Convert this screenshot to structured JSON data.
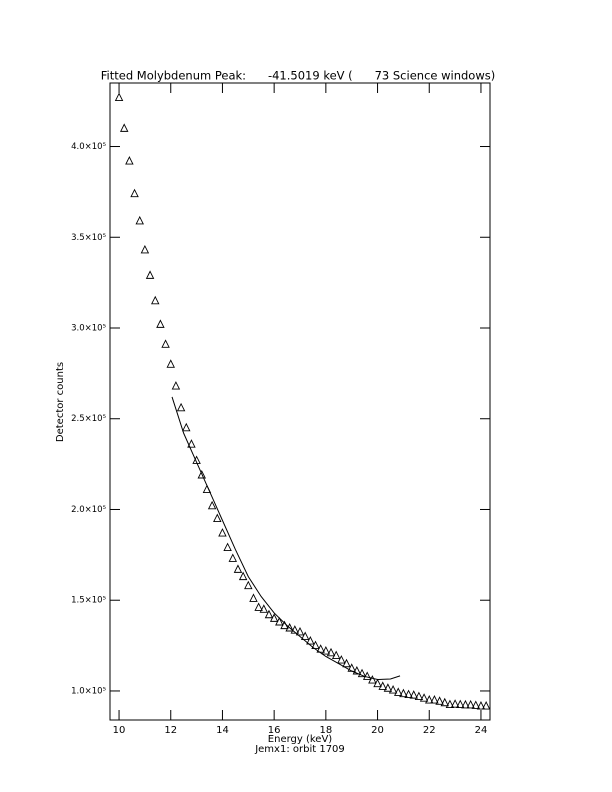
{
  "chart_data": {
    "type": "scatter",
    "title": "Fitted Molybdenum Peak:      -41.5019 keV (      73 Science windows)",
    "x_label": "Energy (keV)",
    "subtitle": "Jemx1: orbit 1709",
    "y_label": "Detector counts",
    "xlim": [
      9.65,
      24.35
    ],
    "ylim": [
      84000,
      435000
    ],
    "xticks": [
      10,
      12,
      14,
      16,
      18,
      20,
      22,
      24
    ],
    "yticks": [
      {
        "value": 100000,
        "label": "1.0×10⁵"
      },
      {
        "value": 150000,
        "label": "1.5×10⁵"
      },
      {
        "value": 200000,
        "label": "2.0×10⁵"
      },
      {
        "value": 250000,
        "label": "2.5×10⁵"
      },
      {
        "value": 300000,
        "label": "3.0×10⁵"
      },
      {
        "value": 350000,
        "label": "3.5×10⁵"
      },
      {
        "value": 400000,
        "label": "4.0×10⁵"
      }
    ],
    "color": "#000000",
    "series": [
      {
        "marker": "triangle",
        "x": [
          10.0,
          10.2,
          10.4,
          10.6,
          10.8,
          11.0,
          11.2,
          11.4,
          11.6,
          11.8,
          12.0,
          12.2,
          12.4,
          12.6,
          12.8,
          13.0,
          13.2,
          13.4,
          13.6,
          13.8,
          14.0,
          14.2,
          14.4,
          14.6,
          14.8,
          15.0,
          15.2,
          15.4,
          15.6,
          15.8,
          16.0,
          16.2,
          16.4,
          16.6,
          16.8,
          17.0,
          17.2,
          17.4,
          17.6,
          17.8,
          18.0,
          18.2,
          18.4,
          18.6,
          18.8,
          19.0,
          19.2,
          19.4,
          19.6,
          19.8,
          20.0,
          20.2,
          20.4,
          20.6,
          20.8,
          21.0,
          21.2,
          21.4,
          21.6,
          21.8,
          22.0,
          22.2,
          22.4,
          22.6,
          22.8,
          23.0,
          23.2,
          23.4,
          23.6,
          23.8,
          24.0,
          24.2
        ],
        "values": [
          427000,
          410000,
          392000,
          374000,
          359000,
          343000,
          329000,
          315000,
          302000,
          291000,
          280000,
          268000,
          256000,
          245000,
          236000,
          227000,
          219000,
          211000,
          202000,
          195000,
          187000,
          179000,
          173000,
          167000,
          163000,
          158000,
          151000,
          146000,
          145000,
          142000,
          140000,
          138000,
          136000,
          134700,
          133500,
          132500,
          130000,
          127500,
          125000,
          123000,
          122000,
          121000,
          119500,
          117000,
          115000,
          112500,
          111000,
          109500,
          108000,
          106000,
          104000,
          102500,
          101500,
          100500,
          99200,
          98500,
          98000,
          97700,
          96900,
          96000,
          95000,
          95000,
          94300,
          93500,
          92500,
          92700,
          92500,
          92300,
          92300,
          92000,
          91700,
          91700
        ]
      },
      {
        "marker": "line",
        "x": [
          12.05,
          12.5,
          13,
          13.5,
          14,
          14.5,
          15,
          15.5,
          16,
          16.5,
          17,
          17.5,
          18,
          18.5,
          19,
          19.5,
          20,
          20.5,
          20.87
        ],
        "values": [
          262000,
          242000,
          226000,
          210000,
          194000,
          178000,
          163000,
          152000,
          143000,
          136000,
          130000,
          124000,
          119000,
          115000,
          111000,
          108000,
          106300,
          106600,
          108300
        ]
      }
    ]
  }
}
